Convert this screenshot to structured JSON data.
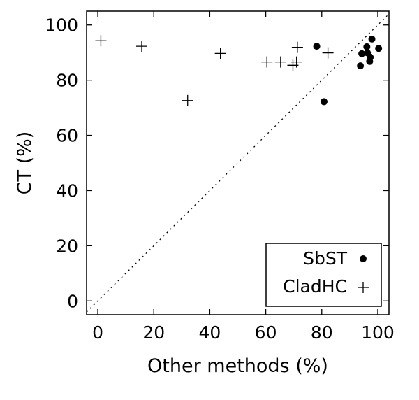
{
  "chart_data": {
    "type": "scatter",
    "xlabel": "Other methods (%)",
    "ylabel": "CT (%)",
    "xlim": [
      -4,
      104
    ],
    "ylim": [
      -5,
      105
    ],
    "xticks": [
      0,
      20,
      40,
      60,
      80,
      100
    ],
    "yticks": [
      0,
      20,
      40,
      60,
      80,
      100
    ],
    "grid": false,
    "reference_line": "y = x (dotted)",
    "legend_position": "bottom-right",
    "series": [
      {
        "name": "SbST",
        "marker": "filled-circle",
        "points": [
          {
            "x": 78.2,
            "y": 92.3
          },
          {
            "x": 80.8,
            "y": 72.2
          },
          {
            "x": 93.8,
            "y": 85.2
          },
          {
            "x": 94.3,
            "y": 89.6
          },
          {
            "x": 96.1,
            "y": 92.1
          },
          {
            "x": 96.3,
            "y": 89.9
          },
          {
            "x": 97.1,
            "y": 86.8
          },
          {
            "x": 97.3,
            "y": 88.3
          },
          {
            "x": 97.9,
            "y": 94.9
          },
          {
            "x": 100.3,
            "y": 91.5
          }
        ]
      },
      {
        "name": "CladHC",
        "marker": "plus",
        "points": [
          {
            "x": 1.1,
            "y": 94.3
          },
          {
            "x": 15.7,
            "y": 92.3
          },
          {
            "x": 32.1,
            "y": 72.6
          },
          {
            "x": 43.8,
            "y": 89.7
          },
          {
            "x": 60.4,
            "y": 86.6
          },
          {
            "x": 65.3,
            "y": 86.6
          },
          {
            "x": 69.7,
            "y": 85.4
          },
          {
            "x": 71.0,
            "y": 86.6
          },
          {
            "x": 71.3,
            "y": 91.9
          },
          {
            "x": 82.2,
            "y": 89.9
          }
        ]
      }
    ]
  }
}
